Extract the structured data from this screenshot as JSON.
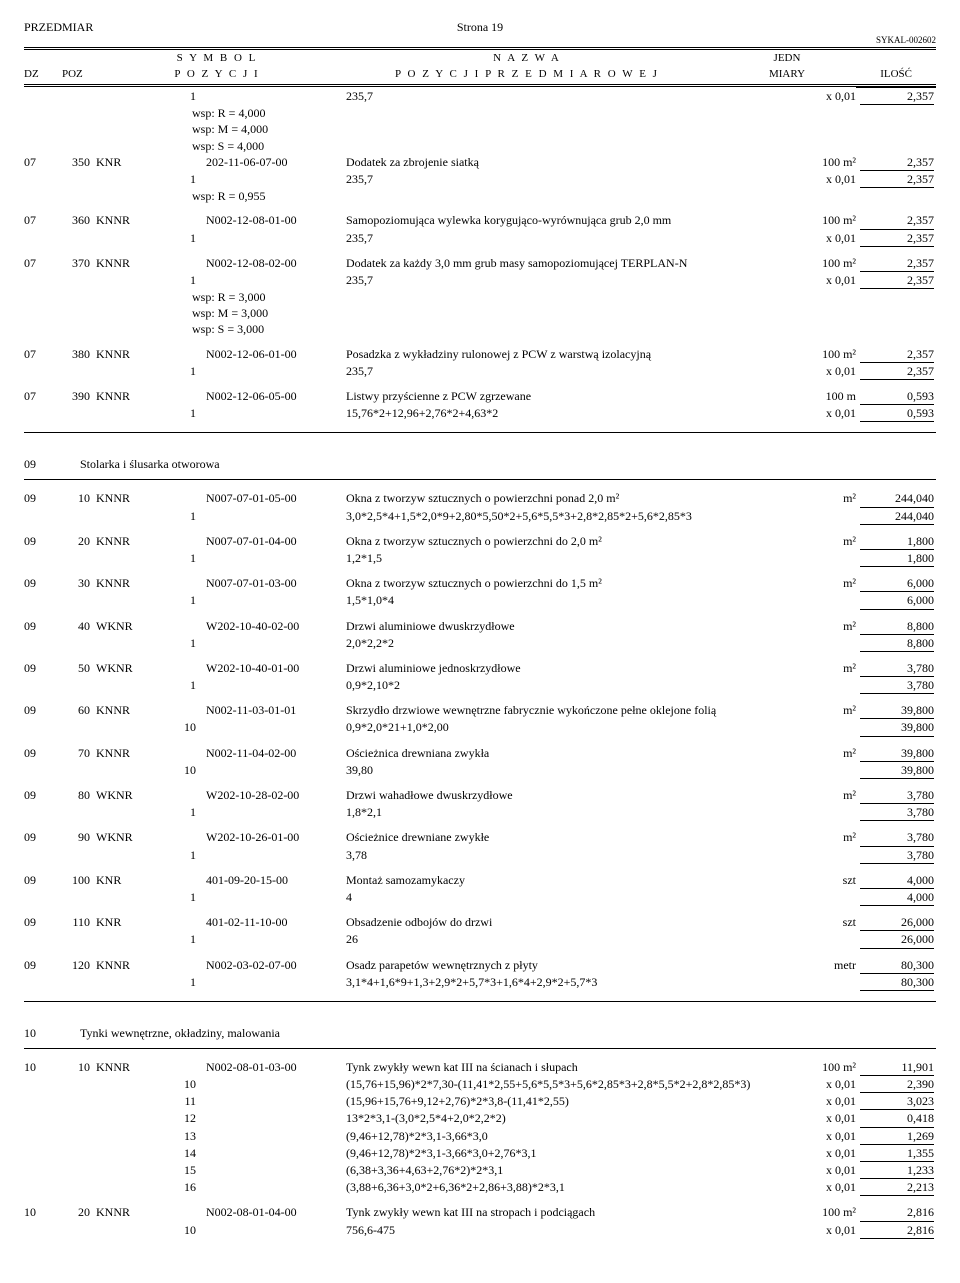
{
  "header": {
    "title_left": "PRZEDMIAR",
    "page": "Strona 19",
    "sykal": "SYKAL-002602",
    "h1_left": "S Y M B O L",
    "h1_center": "N A Z W A",
    "h1_right": "JEDN",
    "h2_dz": "DZ",
    "h2_poz": "POZ",
    "h2_left": "P O Z Y C J I",
    "h2_center": "P O Z Y C J I   P R Z E D M I A R O W E J",
    "h2_right": "MIARY",
    "h2_ilosc": "ILOŚĆ"
  },
  "rows": [
    {
      "sub": "1",
      "desc": "235,7",
      "unit": "x 0,01",
      "qty": "2,357"
    },
    {
      "wsp": "wsp:   R = 4,000"
    },
    {
      "wsp": "wsp:   M = 4,000"
    },
    {
      "wsp": "wsp:   S = 4,000"
    },
    {
      "dz": "07",
      "poz": "350",
      "type": "KNR",
      "code": "202-11-06-07-00",
      "desc": "Dodatek za zbrojenie siatką",
      "unit": "100 m²",
      "qty": "2,357"
    },
    {
      "sub": "1",
      "desc": "235,7",
      "unit": "x 0,01",
      "qty": "2,357"
    },
    {
      "wsp": "wsp:   R = 0,955"
    },
    {
      "dz": "07",
      "poz": "360",
      "type": "KNNR",
      "code": "N002-12-08-01-00",
      "desc": "Samopoziomująca wylewka korygująco-wyrównująca grub 2,0 mm",
      "unit": "100 m²",
      "qty": "2,357"
    },
    {
      "sub": "1",
      "desc": "235,7",
      "unit": "x 0,01",
      "qty": "2,357"
    },
    {
      "dz": "07",
      "poz": "370",
      "type": "KNNR",
      "code": "N002-12-08-02-00",
      "desc": "Dodatek za każdy 3,0 mm grub masy samopoziomującej TERPLAN-N",
      "unit": "100 m²",
      "qty": "2,357"
    },
    {
      "sub": "1",
      "desc": "235,7",
      "unit": "x 0,01",
      "qty": "2,357"
    },
    {
      "wsp": "wsp:   R = 3,000"
    },
    {
      "wsp": "wsp:   M = 3,000"
    },
    {
      "wsp": "wsp:   S = 3,000"
    },
    {
      "dz": "07",
      "poz": "380",
      "type": "KNNR",
      "code": "N002-12-06-01-00",
      "desc": "Posadzka z wykładziny rulonowej z PCW z warstwą izolacyjną",
      "unit": "100 m²",
      "qty": "2,357"
    },
    {
      "sub": "1",
      "desc": "235,7",
      "unit": "x 0,01",
      "qty": "2,357"
    },
    {
      "dz": "07",
      "poz": "390",
      "type": "KNNR",
      "code": "N002-12-06-05-00",
      "desc": "Listwy przyścienne z PCW zgrzewane",
      "unit": "100 m",
      "qty": "0,593"
    },
    {
      "sub": "1",
      "desc": "15,76*2+12,96+2,76*2+4,63*2",
      "unit": "x 0,01",
      "qty": "0,593"
    }
  ],
  "section09": {
    "num": "09",
    "title": "Stolarka i ślusarka otworowa"
  },
  "rows09": [
    {
      "dz": "09",
      "poz": "10",
      "type": "KNNR",
      "code": "N007-07-01-05-00",
      "desc": "Okna z tworzyw sztucznych o powierzchni ponad 2,0 m²",
      "unit": "m²",
      "qty": "244,040"
    },
    {
      "sub": "1",
      "desc": "3,0*2,5*4+1,5*2,0*9+2,80*5,50*2+5,6*5,5*3+2,8*2,85*2+5,6*2,85*3",
      "unit": "",
      "qty": "244,040"
    },
    {
      "dz": "09",
      "poz": "20",
      "type": "KNNR",
      "code": "N007-07-01-04-00",
      "desc": "Okna z tworzyw sztucznych o powierzchni do 2,0 m²",
      "unit": "m²",
      "qty": "1,800"
    },
    {
      "sub": "1",
      "desc": "1,2*1,5",
      "unit": "",
      "qty": "1,800"
    },
    {
      "dz": "09",
      "poz": "30",
      "type": "KNNR",
      "code": "N007-07-01-03-00",
      "desc": "Okna z tworzyw sztucznych o powierzchni do 1,5 m²",
      "unit": "m²",
      "qty": "6,000"
    },
    {
      "sub": "1",
      "desc": "1,5*1,0*4",
      "unit": "",
      "qty": "6,000"
    },
    {
      "dz": "09",
      "poz": "40",
      "type": "WKNR",
      "code": "W202-10-40-02-00",
      "desc": "Drzwi aluminiowe dwuskrzydłowe",
      "unit": "m²",
      "qty": "8,800"
    },
    {
      "sub": "1",
      "desc": "2,0*2,2*2",
      "unit": "",
      "qty": "8,800"
    },
    {
      "dz": "09",
      "poz": "50",
      "type": "WKNR",
      "code": "W202-10-40-01-00",
      "desc": "Drzwi aluminiowe jednoskrzydłowe",
      "unit": "m²",
      "qty": "3,780"
    },
    {
      "sub": "1",
      "desc": "0,9*2,10*2",
      "unit": "",
      "qty": "3,780"
    },
    {
      "dz": "09",
      "poz": "60",
      "type": "KNNR",
      "code": "N002-11-03-01-01",
      "desc": "Skrzydło drzwiowe wewnętrzne fabrycznie wykończone pełne oklejone folią",
      "unit": "m²",
      "qty": "39,800"
    },
    {
      "sub": "10",
      "desc": "0,9*2,0*21+1,0*2,00",
      "unit": "",
      "qty": "39,800"
    },
    {
      "dz": "09",
      "poz": "70",
      "type": "KNNR",
      "code": "N002-11-04-02-00",
      "desc": "Ościeżnica drewniana zwykła",
      "unit": "m²",
      "qty": "39,800"
    },
    {
      "sub": "10",
      "desc": "39,80",
      "unit": "",
      "qty": "39,800"
    },
    {
      "dz": "09",
      "poz": "80",
      "type": "WKNR",
      "code": "W202-10-28-02-00",
      "desc": "Drzwi wahadłowe dwuskrzydłowe",
      "unit": "m²",
      "qty": "3,780"
    },
    {
      "sub": "1",
      "desc": "1,8*2,1",
      "unit": "",
      "qty": "3,780"
    },
    {
      "dz": "09",
      "poz": "90",
      "type": "WKNR",
      "code": "W202-10-26-01-00",
      "desc": "Ościeżnice drewniane zwykłe",
      "unit": "m²",
      "qty": "3,780"
    },
    {
      "sub": "1",
      "desc": "3,78",
      "unit": "",
      "qty": "3,780"
    },
    {
      "dz": "09",
      "poz": "100",
      "type": "KNR",
      "code": "401-09-20-15-00",
      "desc": "Montaż samozamykaczy",
      "unit": "szt",
      "qty": "4,000"
    },
    {
      "sub": "1",
      "desc": "4",
      "unit": "",
      "qty": "4,000"
    },
    {
      "dz": "09",
      "poz": "110",
      "type": "KNR",
      "code": "401-02-11-10-00",
      "desc": "Obsadzenie odbojów do drzwi",
      "unit": "szt",
      "qty": "26,000"
    },
    {
      "sub": "1",
      "desc": "26",
      "unit": "",
      "qty": "26,000"
    },
    {
      "dz": "09",
      "poz": "120",
      "type": "KNNR",
      "code": "N002-03-02-07-00",
      "desc": "Osadz parapetów wewnętrznych z płyty",
      "unit": "metr",
      "qty": "80,300"
    },
    {
      "sub": "1",
      "desc": "3,1*4+1,6*9+1,3+2,9*2+5,7*3+1,6*4+2,9*2+5,7*3",
      "unit": "",
      "qty": "80,300"
    }
  ],
  "section10": {
    "num": "10",
    "title": "Tynki wewnętrzne, okładziny, malowania"
  },
  "rows10": [
    {
      "dz": "10",
      "poz": "10",
      "type": "KNNR",
      "code": "N002-08-01-03-00",
      "desc": "Tynk zwykły wewn kat III na ścianach i słupach",
      "unit": "100 m²",
      "qty": "11,901"
    },
    {
      "sub": "10",
      "desc": "(15,76+15,96)*2*7,30-(11,41*2,55+5,6*5,5*3+5,6*2,85*3+2,8*5,5*2+2,8*2,85*3)",
      "unit": "x 0,01",
      "qty": "2,390"
    },
    {
      "sub": "11",
      "desc": "(15,96+15,76+9,12+2,76)*2*3,8-(11,41*2,55)",
      "unit": "x 0,01",
      "qty": "3,023"
    },
    {
      "sub": "12",
      "desc": "13*2*3,1-(3,0*2,5*4+2,0*2,2*2)",
      "unit": "x 0,01",
      "qty": "0,418"
    },
    {
      "sub": "13",
      "desc": "(9,46+12,78)*2*3,1-3,66*3,0",
      "unit": "x 0,01",
      "qty": "1,269"
    },
    {
      "sub": "14",
      "desc": "(9,46+12,78)*2*3,1-3,66*3,0+2,76*3,1",
      "unit": "x 0,01",
      "qty": "1,355"
    },
    {
      "sub": "15",
      "desc": "(6,38+3,36+4,63+2,76*2)*2*3,1",
      "unit": "x 0,01",
      "qty": "1,233"
    },
    {
      "sub": "16",
      "desc": "(3,88+6,36+3,0*2+6,36*2+2,86+3,88)*2*3,1",
      "unit": "x 0,01",
      "qty": "2,213"
    },
    {
      "dz": "10",
      "poz": "20",
      "type": "KNNR",
      "code": "N002-08-01-04-00",
      "desc": "Tynk zwykły wewn kat III na stropach i podciągach",
      "unit": "100 m²",
      "qty": "2,816"
    },
    {
      "sub": "10",
      "desc": "756,6-475",
      "unit": "x 0,01",
      "qty": "2,816"
    }
  ]
}
